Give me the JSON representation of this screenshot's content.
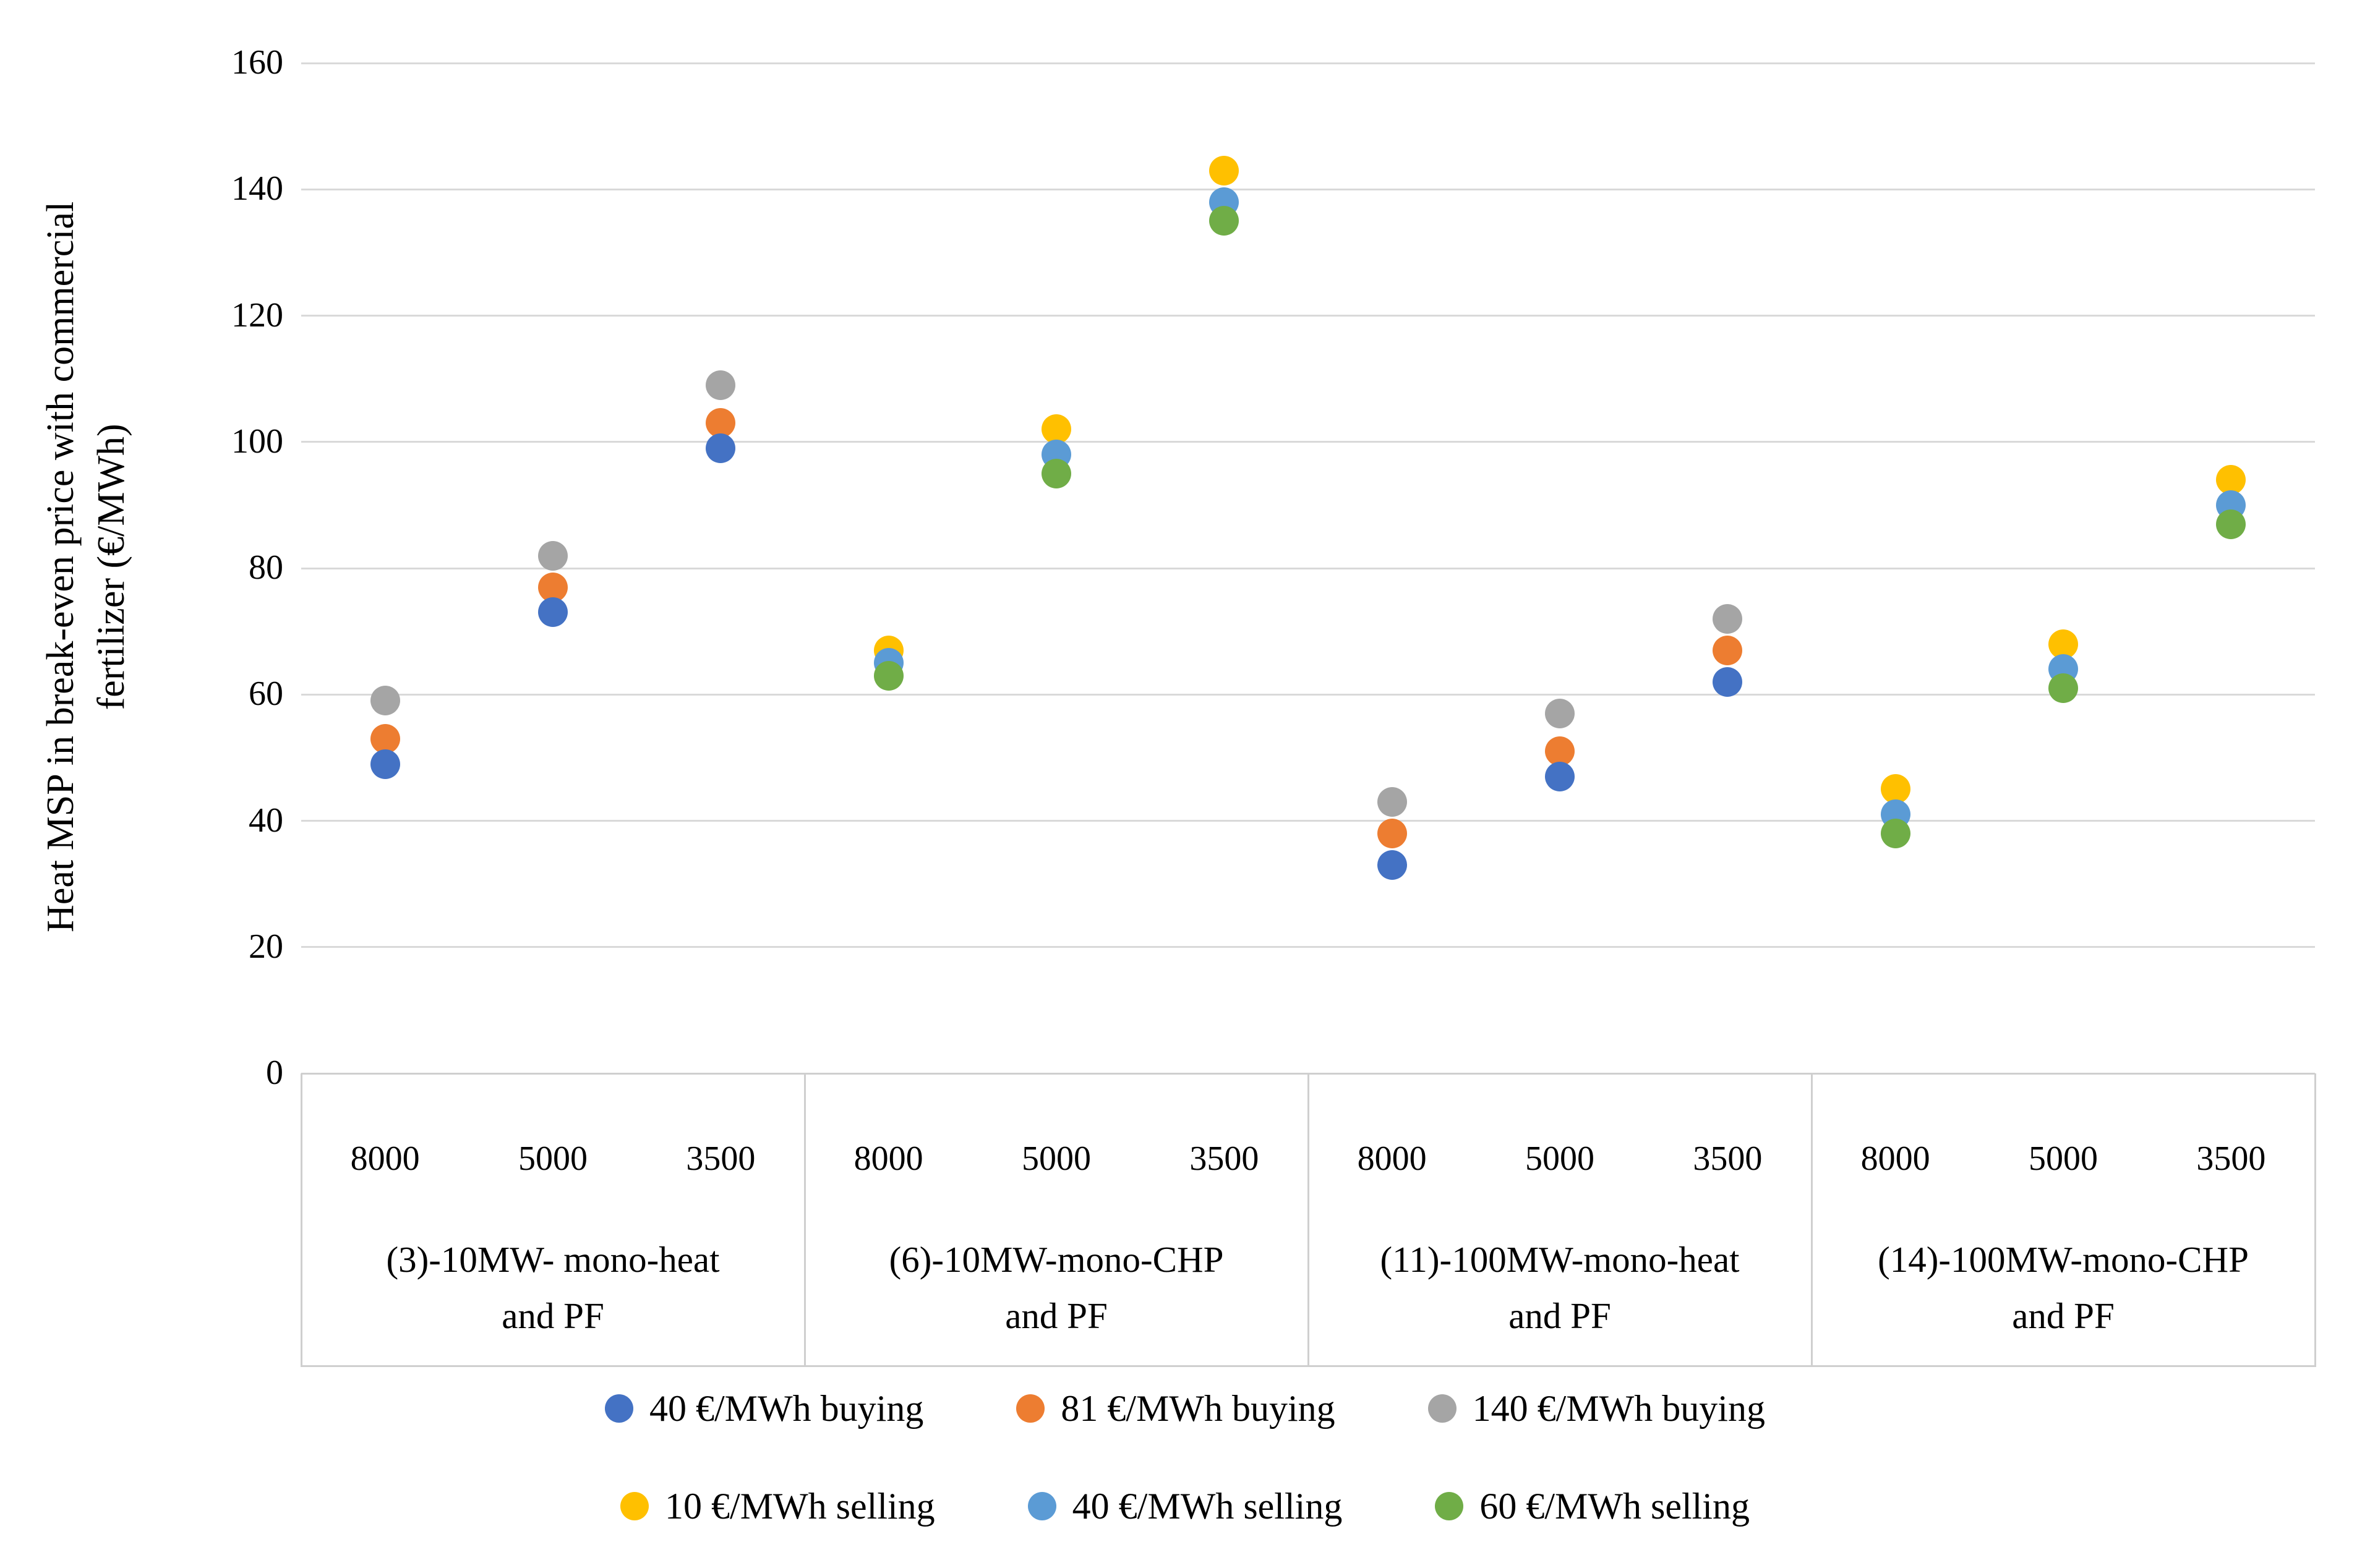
{
  "chart_data": {
    "type": "scatter",
    "title": "",
    "ylabel": "Heat MSP in break-even price with commercial fertilizer (€/MWh)",
    "ylabel_lines": [
      "Heat MSP in break-even price with commercial",
      "fertilizer (€/MWh)"
    ],
    "ylim": [
      0,
      160
    ],
    "yticks": [
      0,
      20,
      40,
      60,
      80,
      100,
      120,
      140,
      160
    ],
    "grid": "horizontal",
    "legend_position": "bottom",
    "categories_per_group": [
      "8000",
      "5000",
      "3500"
    ],
    "groups": [
      {
        "label": "(3)-10MW- mono-heat and PF",
        "label_lines": [
          "(3)-10MW- mono-heat",
          "and PF"
        ]
      },
      {
        "label": "(6)-10MW-mono-CHP and PF",
        "label_lines": [
          "(6)-10MW-mono-CHP",
          "and PF"
        ]
      },
      {
        "label": "(11)-100MW-mono-heat and PF",
        "label_lines": [
          "(11)-100MW-mono-heat",
          "and PF"
        ]
      },
      {
        "label": "(14)-100MW-mono-CHP and PF",
        "label_lines": [
          "(14)-100MW-mono-CHP",
          "and PF"
        ]
      }
    ],
    "series": [
      {
        "name": "40 €/MWh buying",
        "color": "#4472C4",
        "values": [
          49,
          73,
          99,
          null,
          null,
          null,
          33,
          47,
          62,
          null,
          null,
          null
        ]
      },
      {
        "name": "81 €/MWh buying",
        "color": "#ED7D31",
        "values": [
          53,
          77,
          103,
          null,
          null,
          null,
          38,
          51,
          67,
          null,
          null,
          null
        ]
      },
      {
        "name": "140 €/MWh buying",
        "color": "#A5A5A5",
        "values": [
          59,
          82,
          109,
          null,
          null,
          null,
          43,
          57,
          72,
          null,
          null,
          null
        ]
      },
      {
        "name": "10 €/MWh selling",
        "color": "#FFC000",
        "values": [
          null,
          null,
          null,
          67,
          102,
          143,
          null,
          null,
          null,
          45,
          68,
          94
        ]
      },
      {
        "name": "40 €/MWh selling",
        "color": "#5B9BD5",
        "values": [
          null,
          null,
          null,
          65,
          98,
          138,
          null,
          null,
          null,
          41,
          64,
          90
        ]
      },
      {
        "name": "60 €/MWh selling",
        "color": "#70AD47",
        "values": [
          null,
          null,
          null,
          63,
          95,
          135,
          null,
          null,
          null,
          38,
          61,
          87
        ]
      }
    ],
    "legend_rows": [
      [
        0,
        1,
        2
      ],
      [
        3,
        4,
        5
      ]
    ]
  }
}
